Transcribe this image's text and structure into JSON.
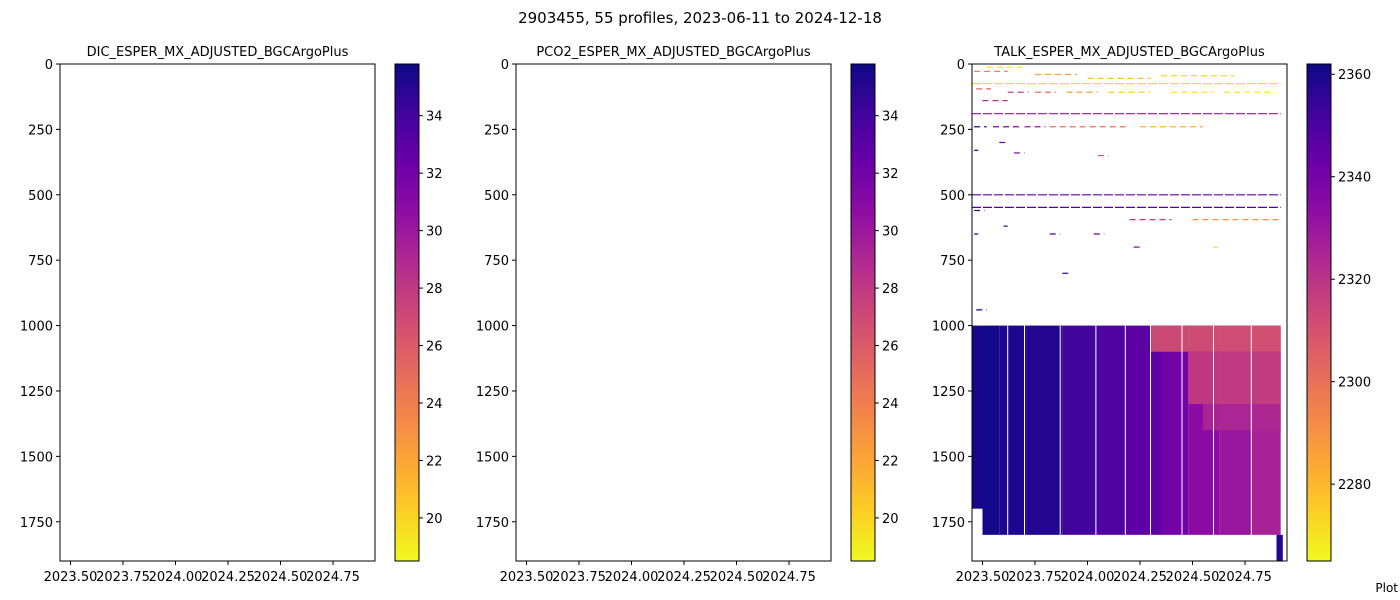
{
  "suptitle": "2903455, 55 profiles, 2023-06-11 to 2024-12-18",
  "credit": "Plot",
  "colors": {
    "plasma": [
      "#0d0887",
      "#41049d",
      "#6a00a8",
      "#8f0da4",
      "#b12a90",
      "#cc4778",
      "#e16462",
      "#f2844b",
      "#fca636",
      "#fcce25",
      "#f0f921"
    ],
    "axis": "#000000",
    "background": "#ffffff"
  },
  "chart_data": [
    {
      "type": "heatmap",
      "title": "DIC_ESPER_MX_ADJUSTED_BGCArgoPlus",
      "xlim": [
        2023.45,
        2024.95
      ],
      "ylim": [
        1900,
        0
      ],
      "xticks": [
        2023.5,
        2023.75,
        2024.0,
        2024.25,
        2024.5,
        2024.75
      ],
      "xtick_labels": [
        "2023.50",
        "2023.75",
        "2024.00",
        "2024.25",
        "2024.50",
        "2024.75"
      ],
      "yticks": [
        0,
        250,
        500,
        750,
        1000,
        1250,
        1500,
        1750
      ],
      "ytick_labels": [
        "0",
        "250",
        "500",
        "750",
        "1000",
        "1250",
        "1500",
        "1750"
      ],
      "colorbar": {
        "colormap": "plasma_r",
        "range": [
          18.5,
          35.8
        ],
        "ticks": [
          20,
          22,
          24,
          26,
          28,
          30,
          32,
          34
        ],
        "tick_labels": [
          "20",
          "22",
          "24",
          "26",
          "28",
          "30",
          "32",
          "34"
        ]
      },
      "data": []
    },
    {
      "type": "heatmap",
      "title": "PCO2_ESPER_MX_ADJUSTED_BGCArgoPlus",
      "xlim": [
        2023.45,
        2024.95
      ],
      "ylim": [
        1900,
        0
      ],
      "xticks": [
        2023.5,
        2023.75,
        2024.0,
        2024.25,
        2024.5,
        2024.75
      ],
      "xtick_labels": [
        "2023.50",
        "2023.75",
        "2024.00",
        "2024.25",
        "2024.50",
        "2024.75"
      ],
      "yticks": [
        0,
        250,
        500,
        750,
        1000,
        1250,
        1500,
        1750
      ],
      "ytick_labels": [
        "0",
        "250",
        "500",
        "750",
        "1000",
        "1250",
        "1500",
        "1750"
      ],
      "colorbar": {
        "colormap": "plasma_r",
        "range": [
          18.5,
          35.8
        ],
        "ticks": [
          20,
          22,
          24,
          26,
          28,
          30,
          32,
          34
        ],
        "tick_labels": [
          "20",
          "22",
          "24",
          "26",
          "28",
          "30",
          "32",
          "34"
        ]
      },
      "data": []
    },
    {
      "type": "heatmap",
      "title": "TALK_ESPER_MX_ADJUSTED_BGCArgoPlus",
      "xlim": [
        2023.45,
        2024.95
      ],
      "ylim": [
        1900,
        0
      ],
      "xticks": [
        2023.5,
        2023.75,
        2024.0,
        2024.25,
        2024.5,
        2024.75
      ],
      "xtick_labels": [
        "2023.50",
        "2023.75",
        "2024.00",
        "2024.25",
        "2024.50",
        "2024.75"
      ],
      "yticks": [
        0,
        250,
        500,
        750,
        1000,
        1250,
        1500,
        1750
      ],
      "ytick_labels": [
        "0",
        "250",
        "500",
        "750",
        "1000",
        "1250",
        "1500",
        "1750"
      ],
      "colorbar": {
        "colormap": "plasma_r",
        "range": [
          2265,
          2362
        ],
        "ticks": [
          2280,
          2300,
          2320,
          2340,
          2360
        ],
        "tick_labels": [
          "2280",
          "2300",
          "2320",
          "2340",
          "2360"
        ]
      },
      "data": {
        "deep_columns": [
          {
            "x0": 2023.45,
            "x1": 2023.5,
            "d1": 1700,
            "v": 2360
          },
          {
            "x0": 2023.5,
            "x1": 2023.58,
            "d1": 1800,
            "v": 2361
          },
          {
            "x0": 2023.58,
            "x1": 2023.71,
            "d1": 1800,
            "v": 2359
          },
          {
            "x0": 2023.71,
            "x1": 2023.88,
            "d1": 1800,
            "v": 2358
          },
          {
            "x0": 2023.88,
            "x1": 2024.04,
            "d1": 1800,
            "v": 2352
          },
          {
            "x0": 2024.04,
            "x1": 2024.18,
            "d1": 1800,
            "v": 2349
          },
          {
            "x0": 2024.18,
            "x1": 2024.35,
            "d1": 1800,
            "v": 2346
          },
          {
            "x0": 2024.35,
            "x1": 2024.48,
            "d1": 1800,
            "v": 2340
          },
          {
            "x0": 2024.48,
            "x1": 2024.63,
            "d1": 1800,
            "v": 2334
          },
          {
            "x0": 2024.63,
            "x1": 2024.78,
            "d1": 1800,
            "v": 2330
          },
          {
            "x0": 2024.78,
            "x1": 2024.92,
            "d1": 1800,
            "v": 2326
          }
        ],
        "deep_bands": [
          {
            "x0": 2024.3,
            "x1": 2024.92,
            "d0": 1000,
            "d1": 1100,
            "v": 2308
          },
          {
            "x0": 2024.48,
            "x1": 2024.92,
            "d0": 1100,
            "d1": 1300,
            "v": 2316
          },
          {
            "x0": 2024.55,
            "x1": 2024.92,
            "d0": 1300,
            "d1": 1400,
            "v": 2324
          }
        ],
        "gaps_x": [
          2023.62,
          2023.7,
          2023.87,
          2024.04,
          2024.18,
          2024.3,
          2024.45,
          2024.6,
          2024.78
        ],
        "tail_column": {
          "x0": 2024.9,
          "x1": 2024.93,
          "d0": 1800,
          "d1": 1900,
          "v": 2358
        },
        "long_lines": [
          {
            "x0": 2023.45,
            "x1": 2024.92,
            "d": 75,
            "v": 2272
          },
          {
            "x0": 2023.45,
            "x1": 2024.92,
            "d": 190,
            "v": 2330
          },
          {
            "x0": 2023.45,
            "x1": 2024.92,
            "d": 500,
            "v": 2345
          },
          {
            "x0": 2023.45,
            "x1": 2024.92,
            "d": 548,
            "v": 2348
          }
        ],
        "short_segments": [
          {
            "x0": 2023.46,
            "x1": 2023.62,
            "d": 28,
            "v": 2300
          },
          {
            "x0": 2023.47,
            "x1": 2023.54,
            "d": 95,
            "v": 2305
          },
          {
            "x0": 2023.5,
            "x1": 2023.62,
            "d": 140,
            "v": 2322
          },
          {
            "x0": 2023.46,
            "x1": 2023.52,
            "d": 240,
            "v": 2360
          },
          {
            "x0": 2023.55,
            "x1": 2023.68,
            "d": 240,
            "v": 2338
          },
          {
            "x0": 2023.7,
            "x1": 2023.8,
            "d": 240,
            "v": 2330
          },
          {
            "x0": 2023.82,
            "x1": 2024.2,
            "d": 240,
            "v": 2300
          },
          {
            "x0": 2024.25,
            "x1": 2024.55,
            "d": 240,
            "v": 2282
          },
          {
            "x0": 2023.62,
            "x1": 2023.72,
            "d": 108,
            "v": 2315
          },
          {
            "x0": 2023.75,
            "x1": 2023.85,
            "d": 108,
            "v": 2300
          },
          {
            "x0": 2023.9,
            "x1": 2024.05,
            "d": 108,
            "v": 2285
          },
          {
            "x0": 2024.1,
            "x1": 2024.3,
            "d": 108,
            "v": 2275
          },
          {
            "x0": 2024.4,
            "x1": 2024.6,
            "d": 108,
            "v": 2270
          },
          {
            "x0": 2024.65,
            "x1": 2024.88,
            "d": 108,
            "v": 2268
          },
          {
            "x0": 2023.52,
            "x1": 2023.7,
            "d": 12,
            "v": 2270
          },
          {
            "x0": 2023.75,
            "x1": 2023.95,
            "d": 40,
            "v": 2285
          },
          {
            "x0": 2024.0,
            "x1": 2024.3,
            "d": 55,
            "v": 2278
          },
          {
            "x0": 2024.35,
            "x1": 2024.7,
            "d": 45,
            "v": 2272
          },
          {
            "x0": 2023.46,
            "x1": 2023.48,
            "d": 330,
            "v": 2358
          },
          {
            "x0": 2023.58,
            "x1": 2023.62,
            "d": 300,
            "v": 2340
          },
          {
            "x0": 2023.65,
            "x1": 2023.7,
            "d": 340,
            "v": 2345
          },
          {
            "x0": 2024.05,
            "x1": 2024.1,
            "d": 350,
            "v": 2310
          },
          {
            "x0": 2023.46,
            "x1": 2023.48,
            "d": 650,
            "v": 2360
          },
          {
            "x0": 2023.6,
            "x1": 2023.62,
            "d": 620,
            "v": 2355
          },
          {
            "x0": 2023.82,
            "x1": 2023.87,
            "d": 650,
            "v": 2350
          },
          {
            "x0": 2024.03,
            "x1": 2024.08,
            "d": 650,
            "v": 2345
          },
          {
            "x0": 2024.22,
            "x1": 2024.25,
            "d": 700,
            "v": 2338
          },
          {
            "x0": 2023.47,
            "x1": 2023.52,
            "d": 940,
            "v": 2361
          },
          {
            "x0": 2023.88,
            "x1": 2023.91,
            "d": 800,
            "v": 2355
          },
          {
            "x0": 2023.46,
            "x1": 2023.51,
            "d": 560,
            "v": 2350
          },
          {
            "x0": 2024.5,
            "x1": 2024.92,
            "d": 595,
            "v": 2290
          },
          {
            "x0": 2024.2,
            "x1": 2024.4,
            "d": 595,
            "v": 2320
          },
          {
            "x0": 2024.6,
            "x1": 2024.62,
            "d": 700,
            "v": 2275
          }
        ]
      }
    }
  ]
}
